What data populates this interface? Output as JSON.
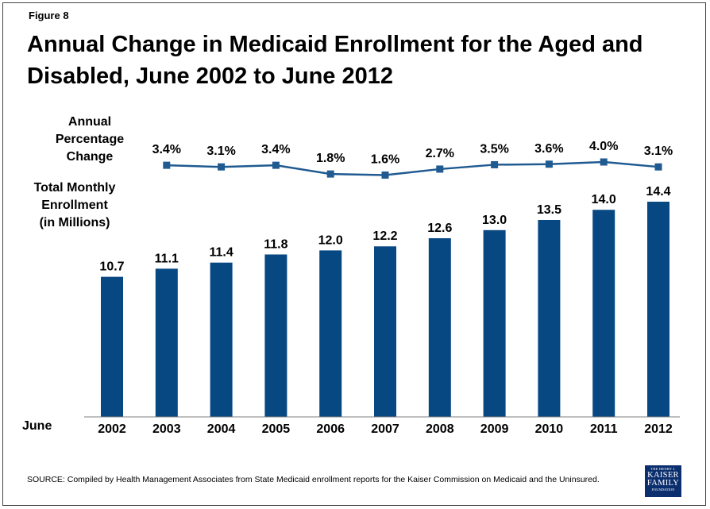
{
  "figure_label": "Figure 8",
  "title": "Annual Change in Medicaid Enrollment for the Aged and Disabled, June 2002 to June 2012",
  "labels": {
    "pct_line1": "Annual",
    "pct_line2": "Percentage",
    "pct_line3": "Change",
    "enroll_line1": "Total Monthly",
    "enroll_line2": "Enrollment",
    "enroll_line3": "(in Millions)",
    "june": "June"
  },
  "source": "SOURCE: Compiled by Health Management Associates from State Medicaid enrollment reports for the Kaiser Commission on Medicaid and the Uninsured.",
  "logo": {
    "line1": "THE HENRY J.",
    "line2": "KAISER",
    "line3": "FAMILY",
    "line4": "FOUNDATION"
  },
  "colors": {
    "bar": "#074883",
    "line": "#1f5a91"
  },
  "chart_data": {
    "type": "bar",
    "categories": [
      "2002",
      "2003",
      "2004",
      "2005",
      "2006",
      "2007",
      "2008",
      "2009",
      "2010",
      "2011",
      "2012"
    ],
    "series": [
      {
        "name": "Total Monthly Enrollment (in Millions)",
        "values": [
          10.7,
          11.1,
          11.4,
          11.8,
          12.0,
          12.2,
          12.6,
          13.0,
          13.5,
          14.0,
          14.4
        ]
      }
    ],
    "value_labels": [
      "10.7",
      "11.1",
      "11.4",
      "11.8",
      "12.0",
      "12.2",
      "12.6",
      "13.0",
      "13.5",
      "14.0",
      "14.4"
    ],
    "ylim": [
      0,
      14.4
    ],
    "line_series": {
      "name": "Annual Percentage Change",
      "categories": [
        "2003",
        "2004",
        "2005",
        "2006",
        "2007",
        "2008",
        "2009",
        "2010",
        "2011",
        "2012"
      ],
      "values": [
        3.4,
        3.1,
        3.4,
        1.8,
        1.6,
        2.7,
        3.5,
        3.6,
        4.0,
        3.1
      ],
      "value_labels": [
        "3.4%",
        "3.1%",
        "3.4%",
        "1.8%",
        "1.6%",
        "2.7%",
        "3.5%",
        "3.6%",
        "4.0%",
        "3.1%"
      ]
    },
    "xlabel": "June",
    "ylabel": "",
    "grid": false
  }
}
